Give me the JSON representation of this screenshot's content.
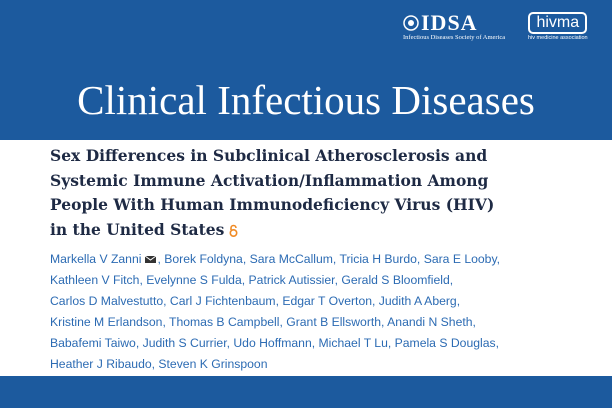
{
  "header": {
    "idsa": {
      "name": "IDSA",
      "subtitle": "Infectious Diseases Society of America"
    },
    "hivma": {
      "name": "hivma",
      "subtitle": "hiv medicine association"
    },
    "journal": "Clinical Infectious Diseases"
  },
  "article": {
    "title_lines": [
      "Sex Differences in Subclinical Atherosclerosis and",
      "Systemic Immune Activation/Inflammation Among",
      "People With Human Immunodeficiency Virus (HIV)",
      "in the United States"
    ],
    "authors": {
      "separator": ",",
      "lines": [
        [
          "Markella V Zanni",
          "Borek Foldyna",
          "Sara McCallum",
          "Tricia H Burdo",
          "Sara E Looby"
        ],
        [
          "Kathleen V Fitch",
          "Evelynne S Fulda",
          "Patrick Autissier",
          "Gerald S Bloomfield"
        ],
        [
          "Carlos D Malvestutto",
          "Carl J Fichtenbaum",
          "Edgar T Overton",
          "Judith A Aberg"
        ],
        [
          "Kristine M Erlandson",
          "Thomas B Campbell",
          "Grant B Ellsworth",
          "Anandi N Sheth"
        ],
        [
          "Babafemi Taiwo",
          "Judith S Currier",
          "Udo Hoffmann",
          "Michael T Lu",
          "Pamela S Douglas"
        ],
        [
          "Heather J Ribaudo",
          "Steven K Grinspoon"
        ]
      ]
    }
  }
}
